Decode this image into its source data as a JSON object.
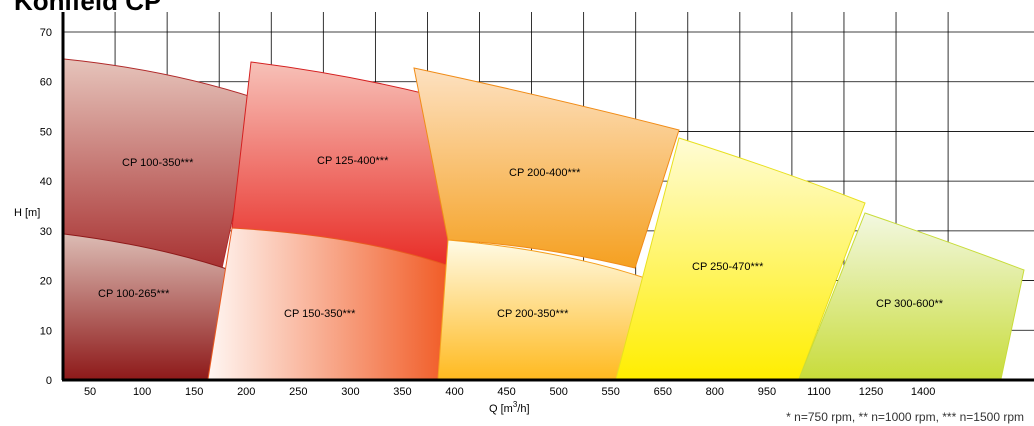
{
  "chart_data": {
    "type": "area",
    "title": "Kohlfeld CP",
    "xlabel": "Q [m",
    "xlabel_sup": "3",
    "xlabel_tail": "/h]",
    "ylabel": "H [m]",
    "ylim": [
      0,
      70
    ],
    "y_ticks": [
      "0",
      "10",
      "20",
      "30",
      "40",
      "50",
      "60",
      "70"
    ],
    "x_ticks": [
      "50",
      "100",
      "150",
      "200",
      "250",
      "300",
      "350",
      "400",
      "450",
      "500",
      "550",
      "650",
      "800",
      "950",
      "1100",
      "1250",
      "1400"
    ],
    "grid": true,
    "footnote": "* n=750 rpm, ** n=1000 rpm, *** n=1500 rpm",
    "series": [
      {
        "name": "CP 100-350***",
        "q_range": [
          0,
          190
        ],
        "h_range": [
          26,
          64
        ],
        "color_top": "#e6c4bb",
        "color_bottom": "#a83232"
      },
      {
        "name": "CP 125-400***",
        "q_range": [
          150,
          390
        ],
        "h_range": [
          25,
          63
        ],
        "color_top": "#f7c1b8",
        "color_bottom": "#e82b25"
      },
      {
        "name": "CP 200-400***",
        "q_range": [
          350,
          650
        ],
        "h_range": [
          22,
          62
        ],
        "color_top": "#fde1c1",
        "color_bottom": "#f5a020"
      },
      {
        "name": "CP 100-265***",
        "q_range": [
          0,
          175
        ],
        "h_range": [
          0,
          29
        ],
        "color_top": "#dcbcb4",
        "color_bottom": "#8e1a1a"
      },
      {
        "name": "CP 150-350***",
        "q_range": [
          140,
          400
        ],
        "h_range": [
          0,
          30
        ],
        "color_top": "#fff6f2",
        "color_bottom": "#f0541c"
      },
      {
        "name": "CP 200-350***",
        "q_range": [
          380,
          640
        ],
        "h_range": [
          0,
          29
        ],
        "color_top": "#fffbe6",
        "color_bottom": "#ffba20"
      },
      {
        "name": "CP 250-470***",
        "q_range": [
          560,
          1000
        ],
        "h_range": [
          0,
          50
        ],
        "color_top": "#fffcd6",
        "color_bottom": "#ffee00"
      },
      {
        "name": "CP 300-600**",
        "q_range": [
          900,
          1450
        ],
        "h_range": [
          0,
          34
        ],
        "color_top": "#f3f8e2",
        "color_bottom": "#c8dc3a"
      }
    ]
  }
}
